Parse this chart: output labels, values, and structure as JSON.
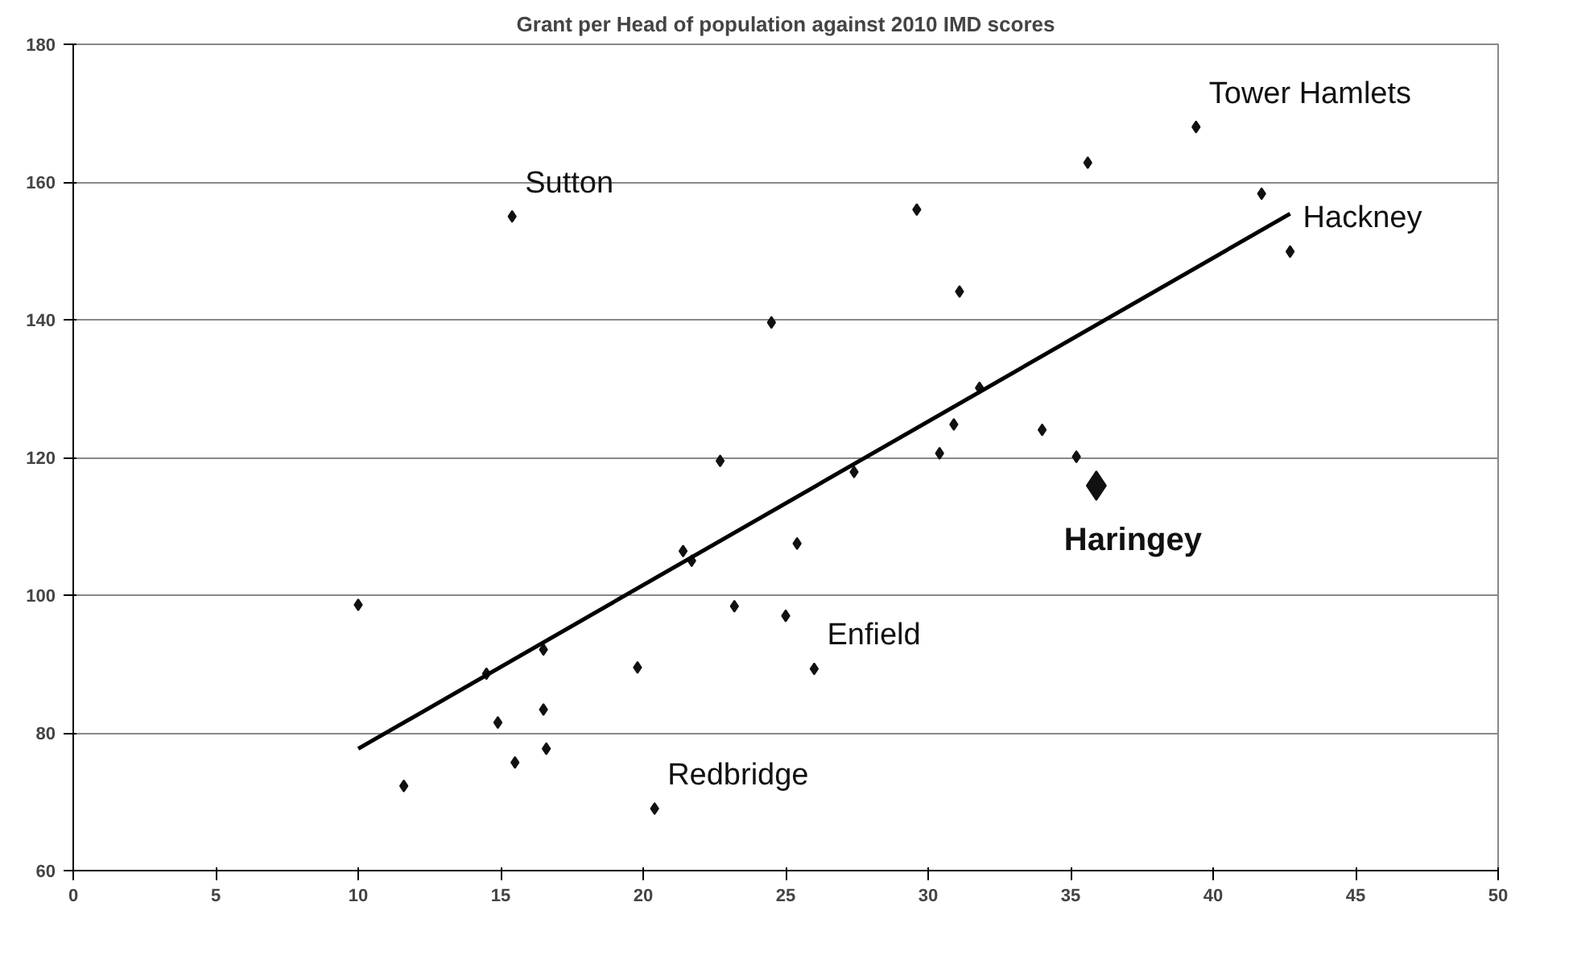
{
  "chart_data": {
    "type": "scatter",
    "title": "Grant per Head of population against 2010 IMD scores",
    "xlim": [
      0,
      50
    ],
    "xticks": [
      0,
      5,
      10,
      15,
      20,
      25,
      30,
      35,
      40,
      45,
      50
    ],
    "ylim": [
      60,
      180
    ],
    "yticks": [
      60,
      80,
      100,
      120,
      140,
      160,
      180
    ],
    "grid": "y",
    "legend": false,
    "marker": "diamond",
    "series": [
      {
        "color": "#111111",
        "x": [
          10.0,
          11.6,
          15.4,
          14.5,
          14.9,
          15.5,
          16.5,
          16.5,
          16.6,
          19.8,
          20.4,
          21.4,
          21.7,
          22.7,
          23.2,
          24.5,
          25.4,
          25.0,
          26.0,
          27.4,
          29.6,
          31.1,
          31.8,
          30.9,
          30.4,
          34.0,
          35.2,
          35.6,
          39.4,
          41.7,
          42.7
        ],
        "values": [
          98.6,
          72.3,
          155,
          88.6,
          81.5,
          75.7,
          92.1,
          83.4,
          77.7,
          89.5,
          69,
          106.4,
          105,
          119.5,
          98.4,
          139.6,
          107.5,
          97.0,
          89.3,
          117.9,
          156,
          144.1,
          130.1,
          124.8,
          120.6,
          124,
          120.1,
          162.8,
          168,
          158.3,
          149.9
        ]
      },
      {
        "name": "Haringey",
        "color": "#111111",
        "x": [
          35.9
        ],
        "values": [
          115.9
        ]
      },
      {
        "type": "line",
        "marker": "none",
        "color": "#000000",
        "x": [
          10,
          42.7
        ],
        "values": [
          77.7,
          155.4
        ]
      }
    ],
    "annotations": [
      {
        "text": "Sutton",
        "x": 15.4,
        "y": 155
      },
      {
        "text": "Tower Hamlets",
        "x": 39.4,
        "y": 168
      },
      {
        "text": "Hackney",
        "x": 42.7,
        "y": 149.9
      },
      {
        "text": "Enfield",
        "x": 26.0,
        "y": 89.3
      },
      {
        "text": "Redbridge",
        "x": 20.4,
        "y": 69
      }
    ]
  }
}
